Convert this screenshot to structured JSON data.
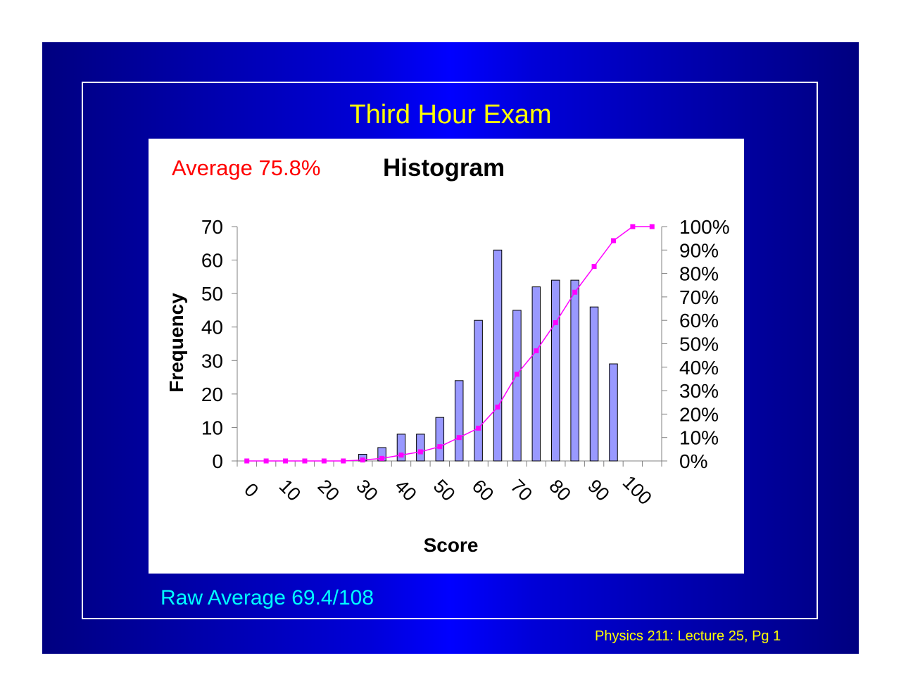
{
  "slide": {
    "title": "Third Hour Exam",
    "footer": "Physics 211: Lecture 25, Pg 1",
    "raw_average": "Raw Average 69.4/108",
    "average_label": "Average 75.8%",
    "colors": {
      "background": "#0000c0",
      "title": "#ffff00",
      "average": "#ff0000",
      "raw_average": "#00ffff",
      "bar_fill": "#9999ff",
      "cumulative_line": "#ff00ff"
    }
  },
  "chart_data": {
    "type": "bar",
    "title": "Histogram",
    "xlabel": "Score",
    "ylabel": "Frequency",
    "categories": [
      "0",
      "",
      "10",
      "",
      "20",
      "",
      "30",
      "",
      "40",
      "",
      "50",
      "",
      "60",
      "",
      "70",
      "",
      "80",
      "",
      "90",
      "",
      "100",
      ""
    ],
    "x_tick_labels": [
      "0",
      "10",
      "20",
      "30",
      "40",
      "50",
      "60",
      "70",
      "80",
      "90",
      "100"
    ],
    "ylim": [
      0,
      70
    ],
    "y_ticks": [
      0,
      10,
      20,
      30,
      40,
      50,
      60,
      70
    ],
    "y2lim": [
      0,
      1
    ],
    "y2_tick_labels": [
      "0%",
      "10%",
      "20%",
      "30%",
      "40%",
      "50%",
      "60%",
      "70%",
      "80%",
      "90%",
      "100%"
    ],
    "grid": false,
    "series": [
      {
        "type": "bar",
        "values": [
          0,
          0,
          0,
          0,
          0,
          0,
          2,
          4,
          8,
          8,
          13,
          24,
          42,
          63,
          45,
          52,
          54,
          54,
          46,
          29,
          0,
          0
        ]
      },
      {
        "type": "line",
        "axis": "right",
        "values": [
          0,
          0,
          0,
          0,
          0,
          0,
          0.004,
          0.011,
          0.025,
          0.039,
          0.061,
          0.1,
          0.14,
          0.23,
          0.37,
          0.47,
          0.59,
          0.72,
          0.83,
          0.94,
          1.0,
          1.0
        ]
      }
    ]
  }
}
